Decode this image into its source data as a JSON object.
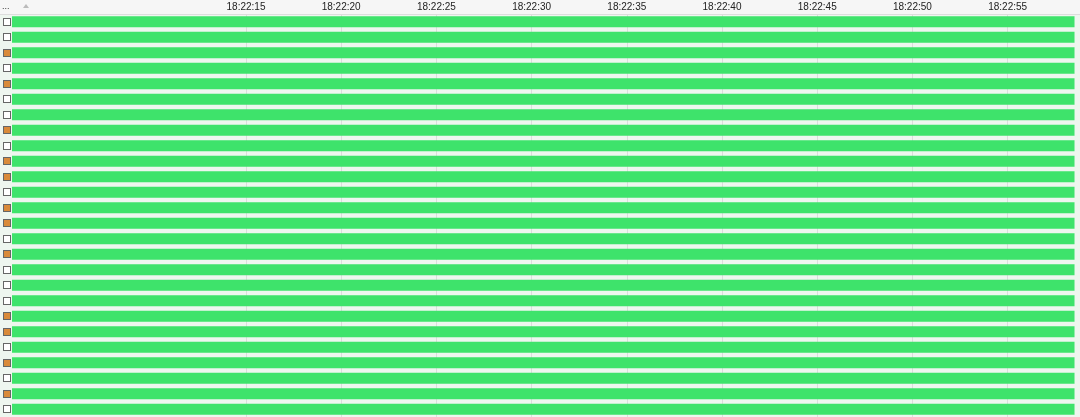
{
  "chart_data": {
    "type": "bar",
    "orientation": "horizontal",
    "annotations": [
      "..."
    ],
    "categories": [
      null,
      null,
      null,
      null,
      null,
      null,
      null,
      null,
      null,
      null,
      null,
      null,
      null,
      null,
      null,
      null,
      null,
      null,
      null,
      null,
      null,
      null,
      null,
      null,
      null,
      null
    ],
    "base": [
      18.36742,
      18.36742,
      18.36742,
      18.36742,
      18.36742,
      18.36742,
      18.36742,
      18.36742,
      18.36742,
      18.36742,
      18.36742,
      18.36742,
      18.36742,
      18.36742,
      18.36742,
      18.36742,
      18.36742,
      18.36742,
      18.36742,
      18.36742,
      18.36742,
      18.36742,
      18.36742,
      18.36742,
      18.36742,
      18.36742
    ],
    "values": [
      0.0155,
      0.0155,
      0.0155,
      0.0155,
      0.0155,
      0.0155,
      0.0155,
      0.0155,
      0.0155,
      0.0155,
      0.0155,
      0.0155,
      0.0155,
      0.0155,
      0.0155,
      0.0155,
      0.0155,
      0.0155,
      0.0155,
      0.0155,
      0.0155,
      0.0155,
      0.0155,
      0.0155,
      0.0155,
      0.0155
    ],
    "color": "#3ee36b",
    "xlim": [
      18.36742,
      18.383
    ],
    "xticks": [
      {
        "value": 18.3708333,
        "label": "18:22:15"
      },
      {
        "value": 18.3722222,
        "label": "18:22:20"
      },
      {
        "value": 18.3736111,
        "label": "18:22:25"
      },
      {
        "value": 18.375,
        "label": "18:22:30"
      },
      {
        "value": 18.3763889,
        "label": "18:22:35"
      },
      {
        "value": 18.3777778,
        "label": "18:22:40"
      },
      {
        "value": 18.3791667,
        "label": "18:22:45"
      },
      {
        "value": 18.3805556,
        "label": "18:22:50"
      },
      {
        "value": 18.3819444,
        "label": "18:22:55"
      }
    ],
    "tick_labels": "x",
    "grid": "x"
  }
}
